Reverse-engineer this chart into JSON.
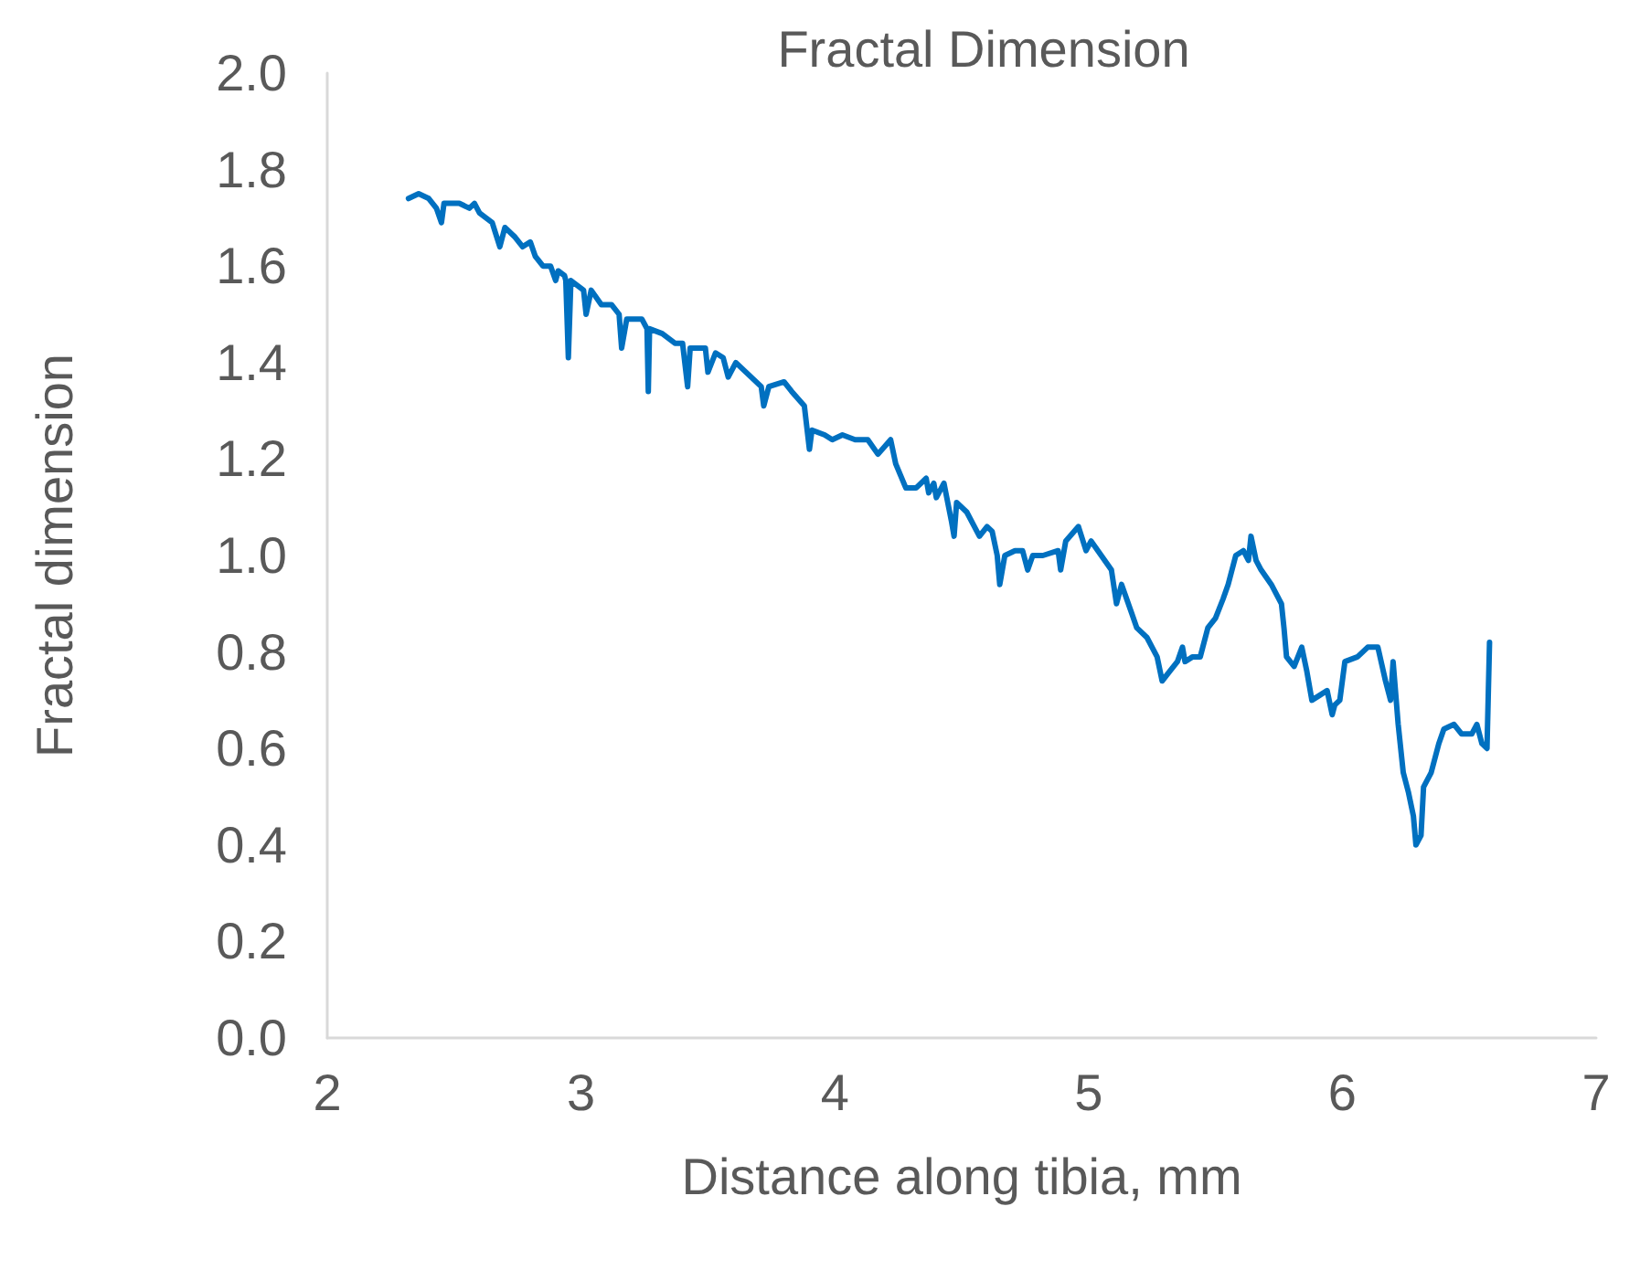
{
  "chart_data": {
    "type": "line",
    "title": "Fractal Dimension",
    "xlabel": "Distance along tibia, mm",
    "ylabel": "Fractal dimension",
    "xlim": [
      2,
      7
    ],
    "xticks": [
      2,
      3,
      4,
      5,
      6,
      7
    ],
    "ylim": [
      0,
      2
    ],
    "yticks": [
      {
        "value": 0,
        "label": "0.0"
      },
      {
        "value": 0.2,
        "label": "0.2"
      },
      {
        "value": 0.4,
        "label": "0.4"
      },
      {
        "value": 0.6,
        "label": "0.6"
      },
      {
        "value": 0.8,
        "label": "0.8"
      },
      {
        "value": 1,
        "label": "1.0"
      },
      {
        "value": 1.2,
        "label": "1.2"
      },
      {
        "value": 1.4,
        "label": "1.4"
      },
      {
        "value": 1.6,
        "label": "1.6"
      },
      {
        "value": 1.8,
        "label": "1.8"
      },
      {
        "value": 2,
        "label": "2.0"
      }
    ],
    "grid": false,
    "marker": "none",
    "line_style": "solid",
    "series": [
      {
        "color": "#0070c0",
        "x": [
          2.32,
          2.36,
          2.4,
          2.43,
          2.45,
          2.46,
          2.52,
          2.56,
          2.58,
          2.6,
          2.65,
          2.68,
          2.7,
          2.74,
          2.77,
          2.8,
          2.82,
          2.85,
          2.88,
          2.9,
          2.91,
          2.935,
          2.94,
          2.95,
          2.96,
          3.01,
          3.02,
          3.04,
          3.08,
          3.12,
          3.15,
          3.16,
          3.18,
          3.24,
          3.26,
          3.265,
          3.27,
          3.32,
          3.37,
          3.4,
          3.42,
          3.43,
          3.49,
          3.5,
          3.53,
          3.56,
          3.58,
          3.61,
          3.65,
          3.71,
          3.72,
          3.74,
          3.8,
          3.83,
          3.88,
          3.9,
          3.91,
          3.96,
          3.99,
          4.03,
          4.08,
          4.13,
          4.17,
          4.22,
          4.24,
          4.28,
          4.32,
          4.36,
          4.37,
          4.39,
          4.4,
          4.43,
          4.46,
          4.47,
          4.48,
          4.52,
          4.55,
          4.57,
          4.6,
          4.62,
          4.64,
          4.65,
          4.67,
          4.71,
          4.74,
          4.76,
          4.78,
          4.82,
          4.88,
          4.89,
          4.91,
          4.96,
          4.99,
          5.01,
          5.05,
          5.09,
          5.11,
          5.13,
          5.17,
          5.19,
          5.23,
          5.27,
          5.29,
          5.32,
          5.35,
          5.37,
          5.38,
          5.41,
          5.44,
          5.47,
          5.5,
          5.53,
          5.55,
          5.58,
          5.61,
          5.63,
          5.64,
          5.66,
          5.68,
          5.72,
          5.76,
          5.77,
          5.78,
          5.81,
          5.84,
          5.86,
          5.88,
          5.91,
          5.94,
          5.96,
          5.97,
          5.99,
          6.01,
          6.06,
          6.1,
          6.14,
          6.17,
          6.19,
          6.2,
          6.22,
          6.24,
          6.26,
          6.28,
          6.29,
          6.31,
          6.32,
          6.35,
          6.38,
          6.4,
          6.44,
          6.47,
          6.51,
          6.53,
          6.55,
          6.57,
          6.58
        ],
        "values": [
          1.74,
          1.75,
          1.74,
          1.72,
          1.69,
          1.73,
          1.73,
          1.72,
          1.73,
          1.71,
          1.69,
          1.64,
          1.68,
          1.66,
          1.64,
          1.65,
          1.62,
          1.6,
          1.6,
          1.57,
          1.59,
          1.58,
          1.57,
          1.41,
          1.57,
          1.55,
          1.5,
          1.55,
          1.52,
          1.52,
          1.5,
          1.43,
          1.49,
          1.49,
          1.47,
          1.34,
          1.47,
          1.46,
          1.44,
          1.44,
          1.35,
          1.43,
          1.43,
          1.38,
          1.42,
          1.41,
          1.37,
          1.4,
          1.38,
          1.35,
          1.31,
          1.35,
          1.36,
          1.34,
          1.31,
          1.22,
          1.26,
          1.25,
          1.24,
          1.25,
          1.24,
          1.24,
          1.21,
          1.24,
          1.19,
          1.14,
          1.14,
          1.16,
          1.13,
          1.15,
          1.12,
          1.15,
          1.07,
          1.04,
          1.11,
          1.09,
          1.06,
          1.04,
          1.06,
          1.05,
          1.0,
          0.94,
          1.0,
          1.01,
          1.01,
          0.97,
          1.0,
          1.0,
          1.01,
          0.97,
          1.03,
          1.06,
          1.01,
          1.03,
          1.0,
          0.97,
          0.9,
          0.94,
          0.88,
          0.85,
          0.83,
          0.79,
          0.74,
          0.76,
          0.78,
          0.81,
          0.78,
          0.79,
          0.79,
          0.85,
          0.87,
          0.91,
          0.94,
          1.0,
          1.01,
          0.99,
          1.04,
          0.99,
          0.97,
          0.94,
          0.9,
          0.85,
          0.79,
          0.77,
          0.81,
          0.76,
          0.7,
          0.71,
          0.72,
          0.67,
          0.69,
          0.7,
          0.78,
          0.79,
          0.81,
          0.81,
          0.74,
          0.7,
          0.78,
          0.65,
          0.55,
          0.51,
          0.46,
          0.4,
          0.42,
          0.52,
          0.55,
          0.61,
          0.64,
          0.65,
          0.63,
          0.63,
          0.65,
          0.61,
          0.6,
          0.82
        ]
      }
    ]
  }
}
